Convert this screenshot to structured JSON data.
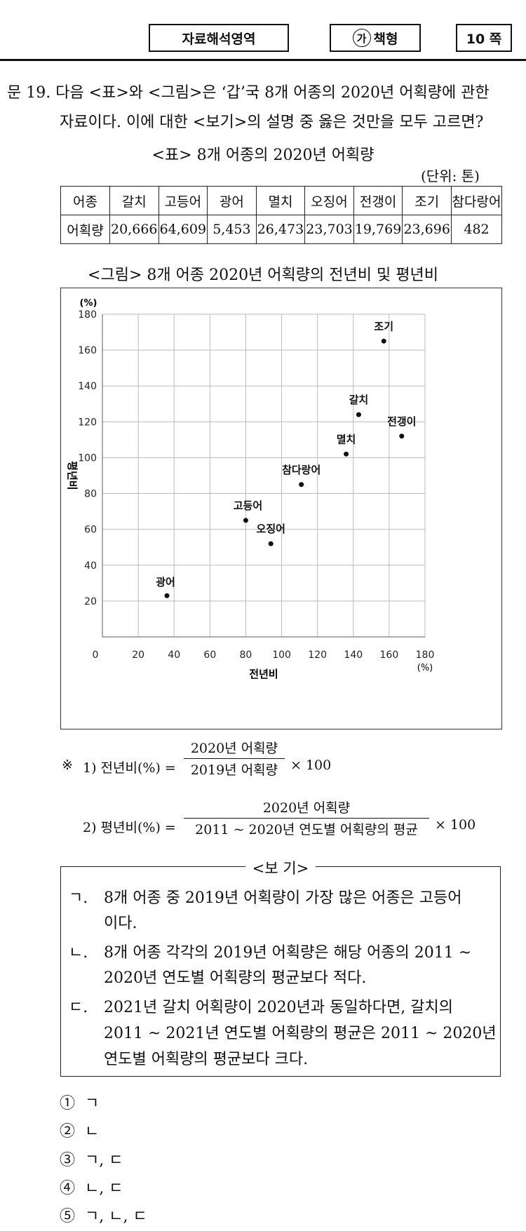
{
  "header": {
    "subject": "자료해석영역",
    "booklet_mark": "가",
    "booklet_label": "책형",
    "page": "10 쪽"
  },
  "question": {
    "line1": "문 19. 다음 <표>와 <그림>은 ‘갑’국 8개 어종의 2020년 어획량에 관한",
    "line2": "자료이다. 이에 대한 <보기>의 설명 중 옳은 것만을 모두 고르면?"
  },
  "table": {
    "title": "<표> 8개 어종의 2020년 어획량",
    "unit": "(단위: 톤)",
    "header_label": "어종",
    "row_label": "어획량",
    "species": [
      "갈치",
      "고등어",
      "광어",
      "멸치",
      "오징어",
      "전갱이",
      "조기",
      "참다랑어"
    ],
    "values": [
      "20,666",
      "64,609",
      "5,453",
      "26,473",
      "23,703",
      "19,769",
      "23,696",
      "482"
    ]
  },
  "figure": {
    "title": "<그림> 8개 어종 2020년 어획량의 전년비 및 평년비"
  },
  "chart_data": {
    "type": "scatter",
    "xlabel": "전년비",
    "ylabel": "평년비",
    "x_unit": "(%)",
    "y_unit": "(%)",
    "xlim": [
      0,
      180
    ],
    "ylim": [
      0,
      180
    ],
    "x_ticks": [
      0,
      20,
      40,
      60,
      80,
      100,
      120,
      140,
      160,
      180
    ],
    "y_ticks": [
      20,
      40,
      60,
      80,
      100,
      120,
      140,
      160,
      180
    ],
    "grid": true,
    "points": [
      {
        "label": "광어",
        "x": 36,
        "y": 23
      },
      {
        "label": "고등어",
        "x": 80,
        "y": 65
      },
      {
        "label": "오징어",
        "x": 94,
        "y": 52
      },
      {
        "label": "참다랑어",
        "x": 111,
        "y": 85
      },
      {
        "label": "멸치",
        "x": 136,
        "y": 102
      },
      {
        "label": "갈치",
        "x": 143,
        "y": 124
      },
      {
        "label": "전갱이",
        "x": 167,
        "y": 112
      },
      {
        "label": "조기",
        "x": 157,
        "y": 165
      }
    ]
  },
  "notes": {
    "mark": "※",
    "n1_label": "1) 전년비(%) =",
    "n1_num": "2020년 어획량",
    "n1_den": "2019년 어획량",
    "n1_mult": "× 100",
    "n2_label": "2) 평년비(%) =",
    "n2_num": "2020년 어획량",
    "n2_den": "2011 ~ 2020년 연도별 어획량의 평균",
    "n2_mult": "× 100"
  },
  "bogi": {
    "title": "<보 기>",
    "items": [
      {
        "mark": "ㄱ.",
        "line1": "8개 어종 중 2019년 어획량이 가장 많은 어종은 고등어",
        "line2": "이다."
      },
      {
        "mark": "ㄴ.",
        "line1": "8개 어종 각각의 2019년 어획량은 해당 어종의 2011 ~",
        "line2": "2020년 연도별 어획량의 평균보다 적다."
      },
      {
        "mark": "ㄷ.",
        "line1": "2021년 갈치 어획량이 2020년과 동일하다면, 갈치의",
        "line2": "2011 ~ 2021년 연도별 어획량의 평균은 2011 ~ 2020년",
        "line3": "연도별 어획량의 평균보다 크다."
      }
    ]
  },
  "choices": [
    {
      "num": "①",
      "text": "ㄱ"
    },
    {
      "num": "②",
      "text": "ㄴ"
    },
    {
      "num": "③",
      "text": "ㄱ, ㄷ"
    },
    {
      "num": "④",
      "text": "ㄴ, ㄷ"
    },
    {
      "num": "⑤",
      "text": "ㄱ, ㄴ, ㄷ"
    }
  ]
}
